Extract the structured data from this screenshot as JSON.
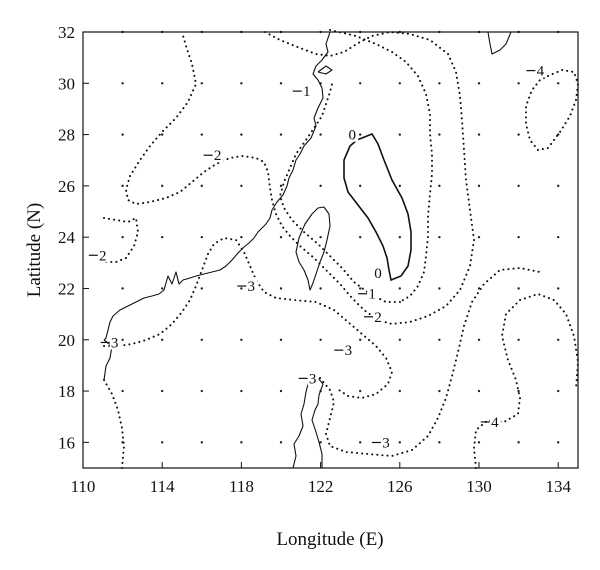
{
  "x_axis": {
    "title": "Longitude (E)",
    "range": [
      110,
      135
    ],
    "ticks": [
      "110",
      "114",
      "118",
      "122",
      "126",
      "130",
      "134"
    ]
  },
  "y_axis": {
    "title": "Latitude (N)",
    "range": [
      15,
      32
    ],
    "ticks": [
      "16",
      "18",
      "20",
      "22",
      "24",
      "26",
      "28",
      "30",
      "32"
    ]
  },
  "grid": "dotted",
  "contour_labels": [
    {
      "text": "0",
      "lon": 123.6,
      "lat": 27.8
    },
    {
      "text": "0",
      "lon": 124.9,
      "lat": 22.4
    },
    {
      "text": "1",
      "lon": 121.3,
      "lat": 29.5
    },
    {
      "text": "1",
      "lon": 124.6,
      "lat": 21.6
    },
    {
      "text": "2",
      "lon": 116.8,
      "lat": 27.0
    },
    {
      "text": "2",
      "lon": 111.0,
      "lat": 23.1
    },
    {
      "text": "2",
      "lon": 124.9,
      "lat": 20.7
    },
    {
      "text": "3",
      "lon": 118.5,
      "lat": 21.9
    },
    {
      "text": "3",
      "lon": 111.6,
      "lat": 19.7
    },
    {
      "text": "3",
      "lon": 123.4,
      "lat": 19.4
    },
    {
      "text": "3",
      "lon": 121.6,
      "lat": 18.3
    },
    {
      "text": "3",
      "lon": 125.3,
      "lat": 15.8
    },
    {
      "text": "4",
      "lon": 133.1,
      "lat": 30.3
    },
    {
      "text": "4",
      "lon": 130.8,
      "lat": 16.6
    }
  ],
  "line_styles": {
    "zero_contour": "solid",
    "other_contours": "dotted"
  }
}
